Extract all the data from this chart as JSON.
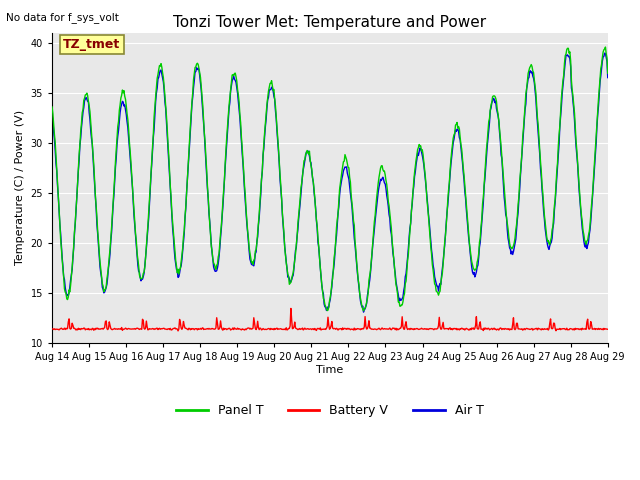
{
  "title": "Tonzi Tower Met: Temperature and Power",
  "subtitle": "No data for f_sys_volt",
  "ylabel": "Temperature (C) / Power (V)",
  "xlabel": "Time",
  "ylim": [
    10,
    41
  ],
  "xlim": [
    0,
    15
  ],
  "xtick_labels": [
    "Aug 14",
    "Aug 15",
    "Aug 16",
    "Aug 17",
    "Aug 18",
    "Aug 19",
    "Aug 20",
    "Aug 21",
    "Aug 22",
    "Aug 23",
    "Aug 24",
    "Aug 25",
    "Aug 26",
    "Aug 27",
    "Aug 28",
    "Aug 29"
  ],
  "ytick_values": [
    10,
    15,
    20,
    25,
    30,
    35,
    40
  ],
  "legend_labels": [
    "Panel T",
    "Battery V",
    "Air T"
  ],
  "legend_colors": [
    "#00cc00",
    "#ff0000",
    "#0000dd"
  ],
  "annotation_text": "TZ_tmet",
  "annotation_color": "#880000",
  "annotation_bg": "#ffff99",
  "plot_bg": "#e8e8e8",
  "fig_bg": "#ffffff",
  "grid_color": "#ffffff",
  "title_fontsize": 11,
  "label_fontsize": 8,
  "tick_fontsize": 7
}
